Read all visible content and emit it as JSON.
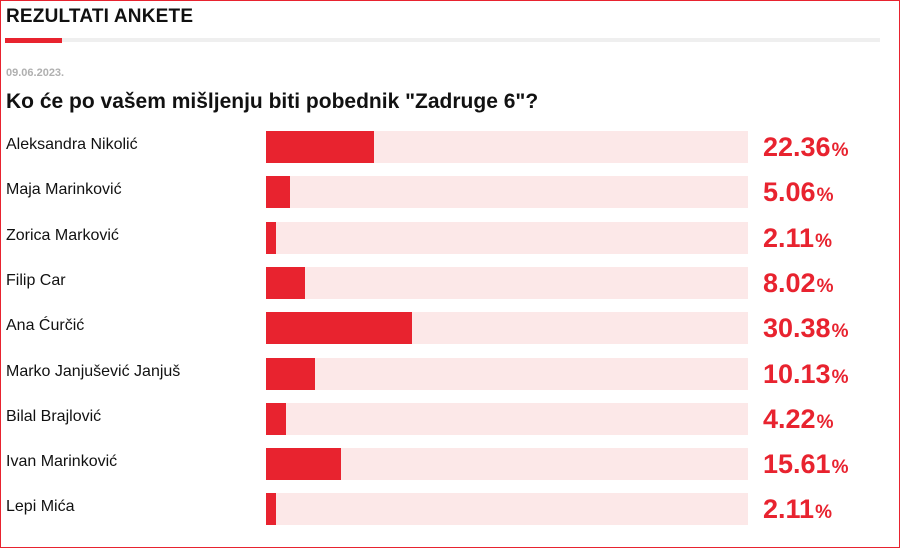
{
  "header": {
    "title": "REZULTATI ANKETE"
  },
  "poll": {
    "date": "09.06.2023.",
    "question": "Ko će po vašem mišljenju biti pobednik \"Zadruge 6\"?",
    "percent_sign": "%"
  },
  "colors": {
    "accent": "#e8232f",
    "track": "#fce8e8",
    "text": "#111111"
  },
  "chart_data": {
    "type": "bar",
    "orientation": "horizontal",
    "title": "Ko će po vašem mišljenju biti pobednik \"Zadruge 6\"?",
    "categories": [
      "Aleksandra Nikolić",
      "Maja Marinković",
      "Zorica Marković",
      "Filip Car",
      "Ana Ćurčić",
      "Marko Janjušević Janjuš",
      "Bilal Brajlović",
      "Ivan Marinković",
      "Lepi Mića"
    ],
    "values": [
      22.36,
      5.06,
      2.11,
      8.02,
      30.38,
      10.13,
      4.22,
      15.61,
      2.11
    ],
    "labels": [
      "22.36",
      "5.06",
      "2.11",
      "8.02",
      "30.38",
      "10.13",
      "4.22",
      "15.61",
      "2.11"
    ],
    "ylim": [
      0,
      100
    ],
    "unit": "%"
  }
}
